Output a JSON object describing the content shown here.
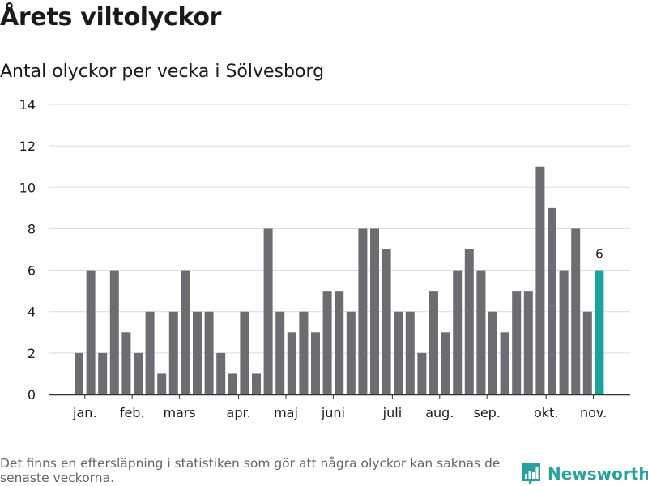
{
  "title": "Årets viltolyckor",
  "subtitle": "Antal olyckor per vecka i Sölvesborg",
  "footnote": "Det finns en eftersläpning i statistiken som gör att några olyckor kan saknas de senaste veckorna.",
  "brand": "Newsworthy",
  "colors": {
    "bar": "#6d6c71",
    "highlight": "#16a49b",
    "brand": "#25a3a0",
    "grid": "#d9d9d9",
    "axis": "#333333"
  },
  "chart_data": {
    "type": "bar",
    "title": "Årets viltolyckor",
    "subtitle": "Antal olyckor per vecka i Sölvesborg",
    "xlabel": "",
    "ylabel": "",
    "ylim": [
      0,
      14
    ],
    "yticks": [
      0,
      2,
      4,
      6,
      8,
      10,
      12,
      14
    ],
    "grid": true,
    "weeks": [
      1,
      2,
      3,
      4,
      5,
      6,
      7,
      8,
      9,
      10,
      11,
      12,
      13,
      14,
      15,
      16,
      17,
      18,
      19,
      20,
      21,
      22,
      23,
      24,
      25,
      26,
      27,
      28,
      29,
      30,
      31,
      32,
      33,
      34,
      35,
      36,
      37,
      38,
      39,
      40,
      41,
      42,
      43,
      44,
      45
    ],
    "values": [
      2,
      6,
      2,
      6,
      3,
      2,
      4,
      1,
      4,
      6,
      4,
      4,
      2,
      1,
      4,
      1,
      8,
      4,
      3,
      4,
      3,
      5,
      5,
      4,
      8,
      8,
      7,
      4,
      4,
      2,
      5,
      3,
      6,
      7,
      6,
      4,
      3,
      5,
      5,
      11,
      9,
      6,
      8,
      4,
      6
    ],
    "highlight_index": 44,
    "highlight_label": "6",
    "month_labels": [
      {
        "label": "jan.",
        "week": 1.5
      },
      {
        "label": "feb.",
        "week": 5.5
      },
      {
        "label": "mars",
        "week": 9.5
      },
      {
        "label": "apr.",
        "week": 14.5
      },
      {
        "label": "maj",
        "week": 18.5
      },
      {
        "label": "juni",
        "week": 22.5
      },
      {
        "label": "juli",
        "week": 27.5
      },
      {
        "label": "aug.",
        "week": 31.5
      },
      {
        "label": "sep.",
        "week": 35.5
      },
      {
        "label": "okt.",
        "week": 40.5
      },
      {
        "label": "nov.",
        "week": 44.5
      }
    ]
  }
}
